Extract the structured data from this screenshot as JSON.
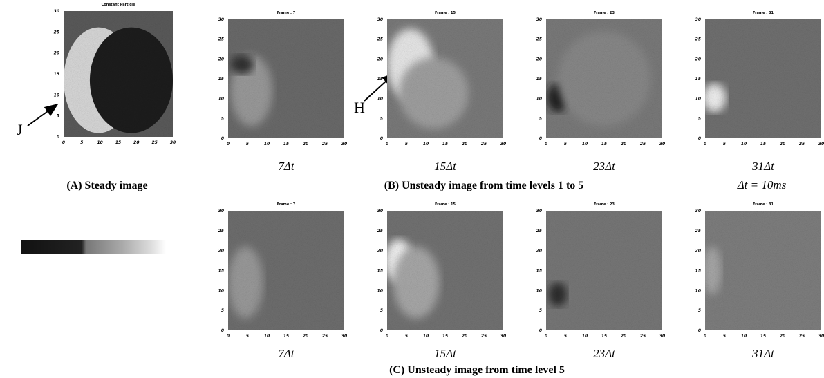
{
  "panel_a": {
    "title": "Constant  Particle",
    "label": "J",
    "caption": "(A) Steady image"
  },
  "row_b": {
    "frames": [
      {
        "title": "Frame : 7",
        "time": "7Δt"
      },
      {
        "title": "Frame : 15",
        "time": "15Δt"
      },
      {
        "title": "Frame : 23",
        "time": "23Δt"
      },
      {
        "title": "Frame : 31",
        "time": "31Δt"
      }
    ],
    "label": "H",
    "caption": "(B) Unsteady image from time levels 1 to 5",
    "note": "Δt = 10ms"
  },
  "row_c": {
    "frames": [
      {
        "title": "Frame : 7",
        "time": "7Δt"
      },
      {
        "title": "Frame : 15",
        "time": "15Δt"
      },
      {
        "title": "Frame : 23",
        "time": "23Δt"
      },
      {
        "title": "Frame : 31",
        "time": "31Δt"
      }
    ],
    "caption": "(C) Unsteady image from time level  5"
  },
  "axis_ticks": [
    0,
    5,
    10,
    15,
    20,
    25,
    30
  ]
}
